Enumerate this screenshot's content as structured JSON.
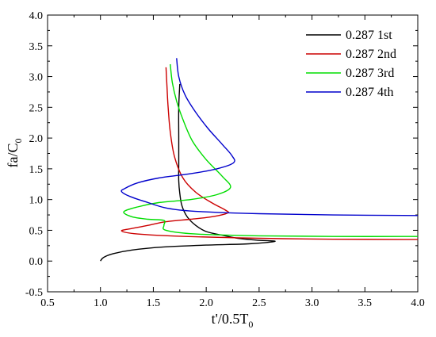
{
  "chart_data": {
    "type": "line",
    "title": "",
    "xlabel": "t'/0.5T",
    "xlabel_sub": "0",
    "ylabel": "fa/C",
    "ylabel_sub": "0",
    "xlim": [
      0.5,
      4.0
    ],
    "ylim": [
      -0.5,
      4.0
    ],
    "xticks": [
      "0.5",
      "1.0",
      "1.5",
      "2.0",
      "2.5",
      "3.0",
      "3.5",
      "4.0"
    ],
    "yticks": [
      "-0.5",
      "0.0",
      "0.5",
      "1.0",
      "1.5",
      "2.0",
      "2.5",
      "3.0",
      "3.5",
      "4.0"
    ],
    "grid": false,
    "legend_position": "top-right",
    "series": [
      {
        "name": "0.287 1st",
        "color": "#000000",
        "points": [
          [
            1.75,
            2.88
          ],
          [
            1.74,
            2.5
          ],
          [
            1.74,
            2.0
          ],
          [
            1.74,
            1.6
          ],
          [
            1.74,
            1.3
          ],
          [
            1.75,
            1.1
          ],
          [
            1.77,
            0.9
          ],
          [
            1.82,
            0.72
          ],
          [
            1.9,
            0.58
          ],
          [
            2.0,
            0.48
          ],
          [
            2.15,
            0.42
          ],
          [
            2.3,
            0.37
          ],
          [
            2.48,
            0.34
          ],
          [
            2.65,
            0.32
          ],
          [
            2.4,
            0.28
          ],
          [
            2.0,
            0.26
          ],
          [
            1.6,
            0.23
          ],
          [
            1.3,
            0.18
          ],
          [
            1.12,
            0.12
          ],
          [
            1.03,
            0.06
          ],
          [
            1.0,
            0.0
          ]
        ]
      },
      {
        "name": "0.287 2nd",
        "color": "#cc0000",
        "points": [
          [
            1.62,
            3.15
          ],
          [
            1.63,
            2.8
          ],
          [
            1.64,
            2.5
          ],
          [
            1.66,
            2.1
          ],
          [
            1.7,
            1.7
          ],
          [
            1.78,
            1.35
          ],
          [
            1.9,
            1.12
          ],
          [
            2.05,
            0.95
          ],
          [
            2.18,
            0.83
          ],
          [
            2.2,
            0.78
          ],
          [
            2.05,
            0.72
          ],
          [
            1.85,
            0.68
          ],
          [
            1.62,
            0.64
          ],
          [
            1.45,
            0.58
          ],
          [
            1.3,
            0.53
          ],
          [
            1.2,
            0.49
          ],
          [
            1.35,
            0.44
          ],
          [
            1.8,
            0.4
          ],
          [
            2.5,
            0.37
          ],
          [
            3.2,
            0.355
          ],
          [
            4.0,
            0.35
          ]
        ]
      },
      {
        "name": "0.287 3rd",
        "color": "#00dd00",
        "points": [
          [
            1.66,
            3.2
          ],
          [
            1.68,
            2.9
          ],
          [
            1.72,
            2.6
          ],
          [
            1.78,
            2.3
          ],
          [
            1.87,
            1.95
          ],
          [
            2.0,
            1.65
          ],
          [
            2.15,
            1.38
          ],
          [
            2.23,
            1.2
          ],
          [
            2.1,
            1.08
          ],
          [
            1.85,
            1.0
          ],
          [
            1.55,
            0.95
          ],
          [
            1.35,
            0.88
          ],
          [
            1.22,
            0.8
          ],
          [
            1.3,
            0.72
          ],
          [
            1.45,
            0.68
          ],
          [
            1.6,
            0.66
          ],
          [
            1.6,
            0.58
          ],
          [
            1.62,
            0.5
          ],
          [
            1.9,
            0.44
          ],
          [
            2.5,
            0.41
          ],
          [
            3.2,
            0.4
          ],
          [
            4.0,
            0.4
          ]
        ]
      },
      {
        "name": "0.287 4th",
        "color": "#0000cc",
        "points": [
          [
            1.72,
            3.3
          ],
          [
            1.74,
            3.0
          ],
          [
            1.8,
            2.7
          ],
          [
            1.9,
            2.42
          ],
          [
            2.02,
            2.15
          ],
          [
            2.15,
            1.9
          ],
          [
            2.24,
            1.72
          ],
          [
            2.26,
            1.6
          ],
          [
            2.1,
            1.5
          ],
          [
            1.85,
            1.42
          ],
          [
            1.55,
            1.35
          ],
          [
            1.35,
            1.27
          ],
          [
            1.23,
            1.18
          ],
          [
            1.2,
            1.13
          ],
          [
            1.28,
            1.05
          ],
          [
            1.45,
            0.95
          ],
          [
            1.6,
            0.87
          ],
          [
            1.75,
            0.83
          ],
          [
            2.0,
            0.8
          ],
          [
            2.5,
            0.77
          ],
          [
            3.2,
            0.75
          ],
          [
            4.0,
            0.74
          ]
        ]
      }
    ]
  }
}
